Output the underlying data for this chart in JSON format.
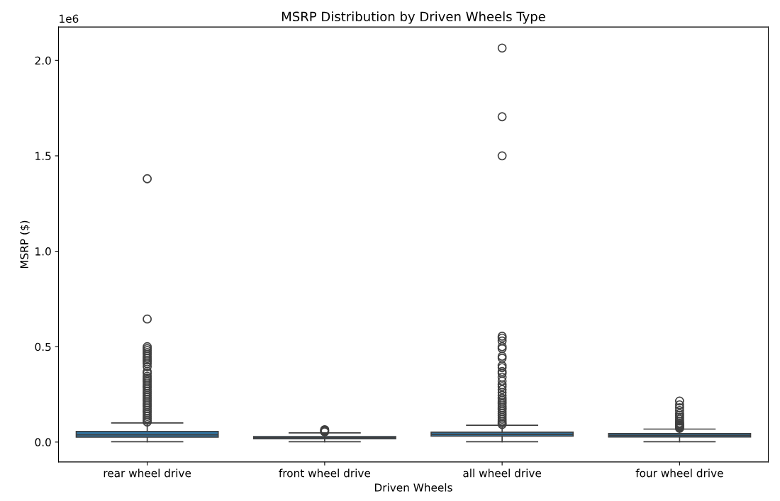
{
  "chart_data": {
    "type": "box",
    "title": "MSRP Distribution by Driven Wheels Type",
    "xlabel": "Driven Wheels",
    "ylabel": "MSRP ($)",
    "categories": [
      "rear wheel drive",
      "front wheel drive",
      "all wheel drive",
      "four wheel drive"
    ],
    "ylim": [
      -0.104,
      2.175
    ],
    "yticks": [
      {
        "value": 0,
        "label": "0.0"
      },
      0.5,
      {
        "value": 1,
        "label": "1.0"
      },
      1.5,
      {
        "value": 2,
        "label": "2.0"
      }
    ],
    "annotations": [
      "1e6"
    ],
    "grid": false,
    "series": [
      {
        "color": "#3274a1",
        "boxes": [
          {
            "low": 0.002,
            "q1": 0.026,
            "median": 0.038,
            "q3": 0.056,
            "high": 0.1,
            "outliers": [
              0.105,
              0.115,
              0.125,
              0.135,
              0.145,
              0.155,
              0.165,
              0.175,
              0.185,
              0.195,
              0.205,
              0.215,
              0.225,
              0.235,
              0.245,
              0.255,
              0.265,
              0.275,
              0.285,
              0.295,
              0.305,
              0.315,
              0.325,
              0.335,
              0.345,
              0.36,
              0.37,
              0.395,
              0.41,
              0.42,
              0.43,
              0.44,
              0.45,
              0.46,
              0.47,
              0.48,
              0.49,
              0.5,
              0.645,
              1.38
            ]
          },
          {
            "low": 0.002,
            "q1": 0.017,
            "median": 0.022,
            "q3": 0.029,
            "high": 0.048,
            "outliers": [
              0.053,
              0.057,
              0.06,
              0.063,
              0.065
            ]
          },
          {
            "low": 0.002,
            "q1": 0.031,
            "median": 0.04,
            "q3": 0.052,
            "high": 0.088,
            "outliers": [
              0.092,
              0.1,
              0.11,
              0.12,
              0.13,
              0.14,
              0.15,
              0.16,
              0.17,
              0.18,
              0.19,
              0.2,
              0.21,
              0.22,
              0.23,
              0.245,
              0.26,
              0.275,
              0.29,
              0.3,
              0.32,
              0.34,
              0.36,
              0.37,
              0.39,
              0.4,
              0.44,
              0.45,
              0.49,
              0.5,
              0.53,
              0.545,
              0.555,
              1.5,
              1.705,
              2.065
            ]
          },
          {
            "low": 0.002,
            "q1": 0.027,
            "median": 0.035,
            "q3": 0.045,
            "high": 0.068,
            "outliers": [
              0.072,
              0.076,
              0.08,
              0.085,
              0.09,
              0.095,
              0.1,
              0.11,
              0.12,
              0.13,
              0.14,
              0.15,
              0.165,
              0.18,
              0.195,
              0.215
            ]
          }
        ]
      }
    ]
  }
}
